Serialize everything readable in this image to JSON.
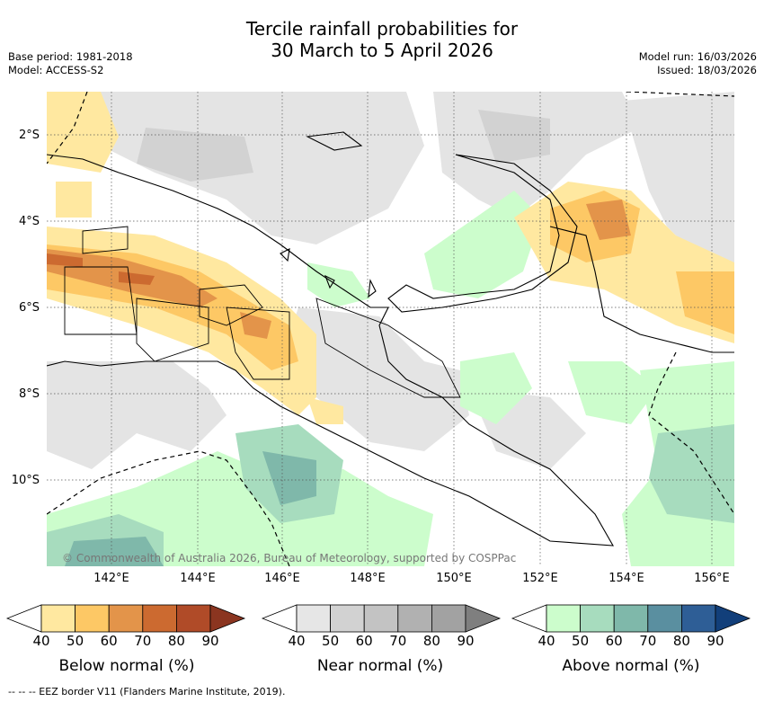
{
  "header": {
    "title_line1": "Tercile rainfall probabilities for",
    "title_line2": "30 March to 5 April 2026",
    "base_period": "Base period: 1981-2018",
    "model": "Model: ACCESS-S2",
    "model_run": "Model run: 16/03/2026",
    "issued": "Issued: 18/03/2026"
  },
  "map": {
    "copyright": "© Commonwealth of Australia 2026, Bureau of Meteorology, supported by COSPPac",
    "lat_labels": [
      "2°S",
      "4°S",
      "6°S",
      "8°S",
      "10°S"
    ],
    "lon_labels": [
      "142°E",
      "144°E",
      "146°E",
      "148°E",
      "150°E",
      "152°E",
      "154°E",
      "156°E"
    ]
  },
  "colorbars": {
    "ticks": [
      "40",
      "50",
      "60",
      "70",
      "80",
      "90"
    ],
    "below": {
      "title": "Below normal (%)",
      "colors": [
        "#ffffff",
        "#ffe8a0",
        "#fdc865",
        "#e3944a",
        "#cc6a30",
        "#b04b28",
        "#8b3520"
      ]
    },
    "near": {
      "title": "Near normal (%)",
      "colors": [
        "#ffffff",
        "#e6e6e6",
        "#d2d2d2",
        "#c3c3c3",
        "#b1b1b1",
        "#a2a2a2",
        "#7f7f7f"
      ]
    },
    "above": {
      "title": "Above normal (%)",
      "colors": [
        "#ffffff",
        "#ccfdcc",
        "#a7dcbe",
        "#7fb8aa",
        "#5a8fa0",
        "#2e5e96",
        "#123f7a"
      ]
    }
  },
  "footer": "-- -- -- EEZ border V11 (Flanders Marine Institute, 2019)."
}
